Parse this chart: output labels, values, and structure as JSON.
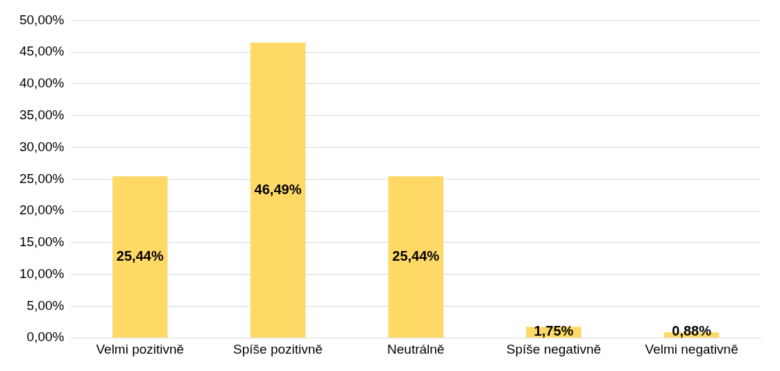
{
  "chart_data": {
    "type": "bar",
    "categories": [
      "Velmi pozitivně",
      "Spíše pozitivně",
      "Neutrálně",
      "Spíše negativně",
      "Velmi negativně"
    ],
    "values": [
      25.44,
      46.49,
      25.44,
      1.75,
      0.88
    ],
    "color": "#ffd966",
    "value_labels": [
      "25,44%",
      "46,49%",
      "25,44%",
      "1,75%",
      "0,88%"
    ],
    "ylim": [
      0,
      50
    ],
    "yticks": [
      {
        "value": 0,
        "label": "0,00%"
      },
      {
        "value": 5,
        "label": "5,00%"
      },
      {
        "value": 10,
        "label": "10,00%"
      },
      {
        "value": 15,
        "label": "15,00%"
      },
      {
        "value": 20,
        "label": "20,00%"
      },
      {
        "value": 25,
        "label": "25,00%"
      },
      {
        "value": 30,
        "label": "30,00%"
      },
      {
        "value": 35,
        "label": "35,00%"
      },
      {
        "value": 40,
        "label": "40,00%"
      },
      {
        "value": 45,
        "label": "45,00%"
      },
      {
        "value": 50,
        "label": "50,00%"
      }
    ],
    "grid": "y",
    "legend": false
  }
}
